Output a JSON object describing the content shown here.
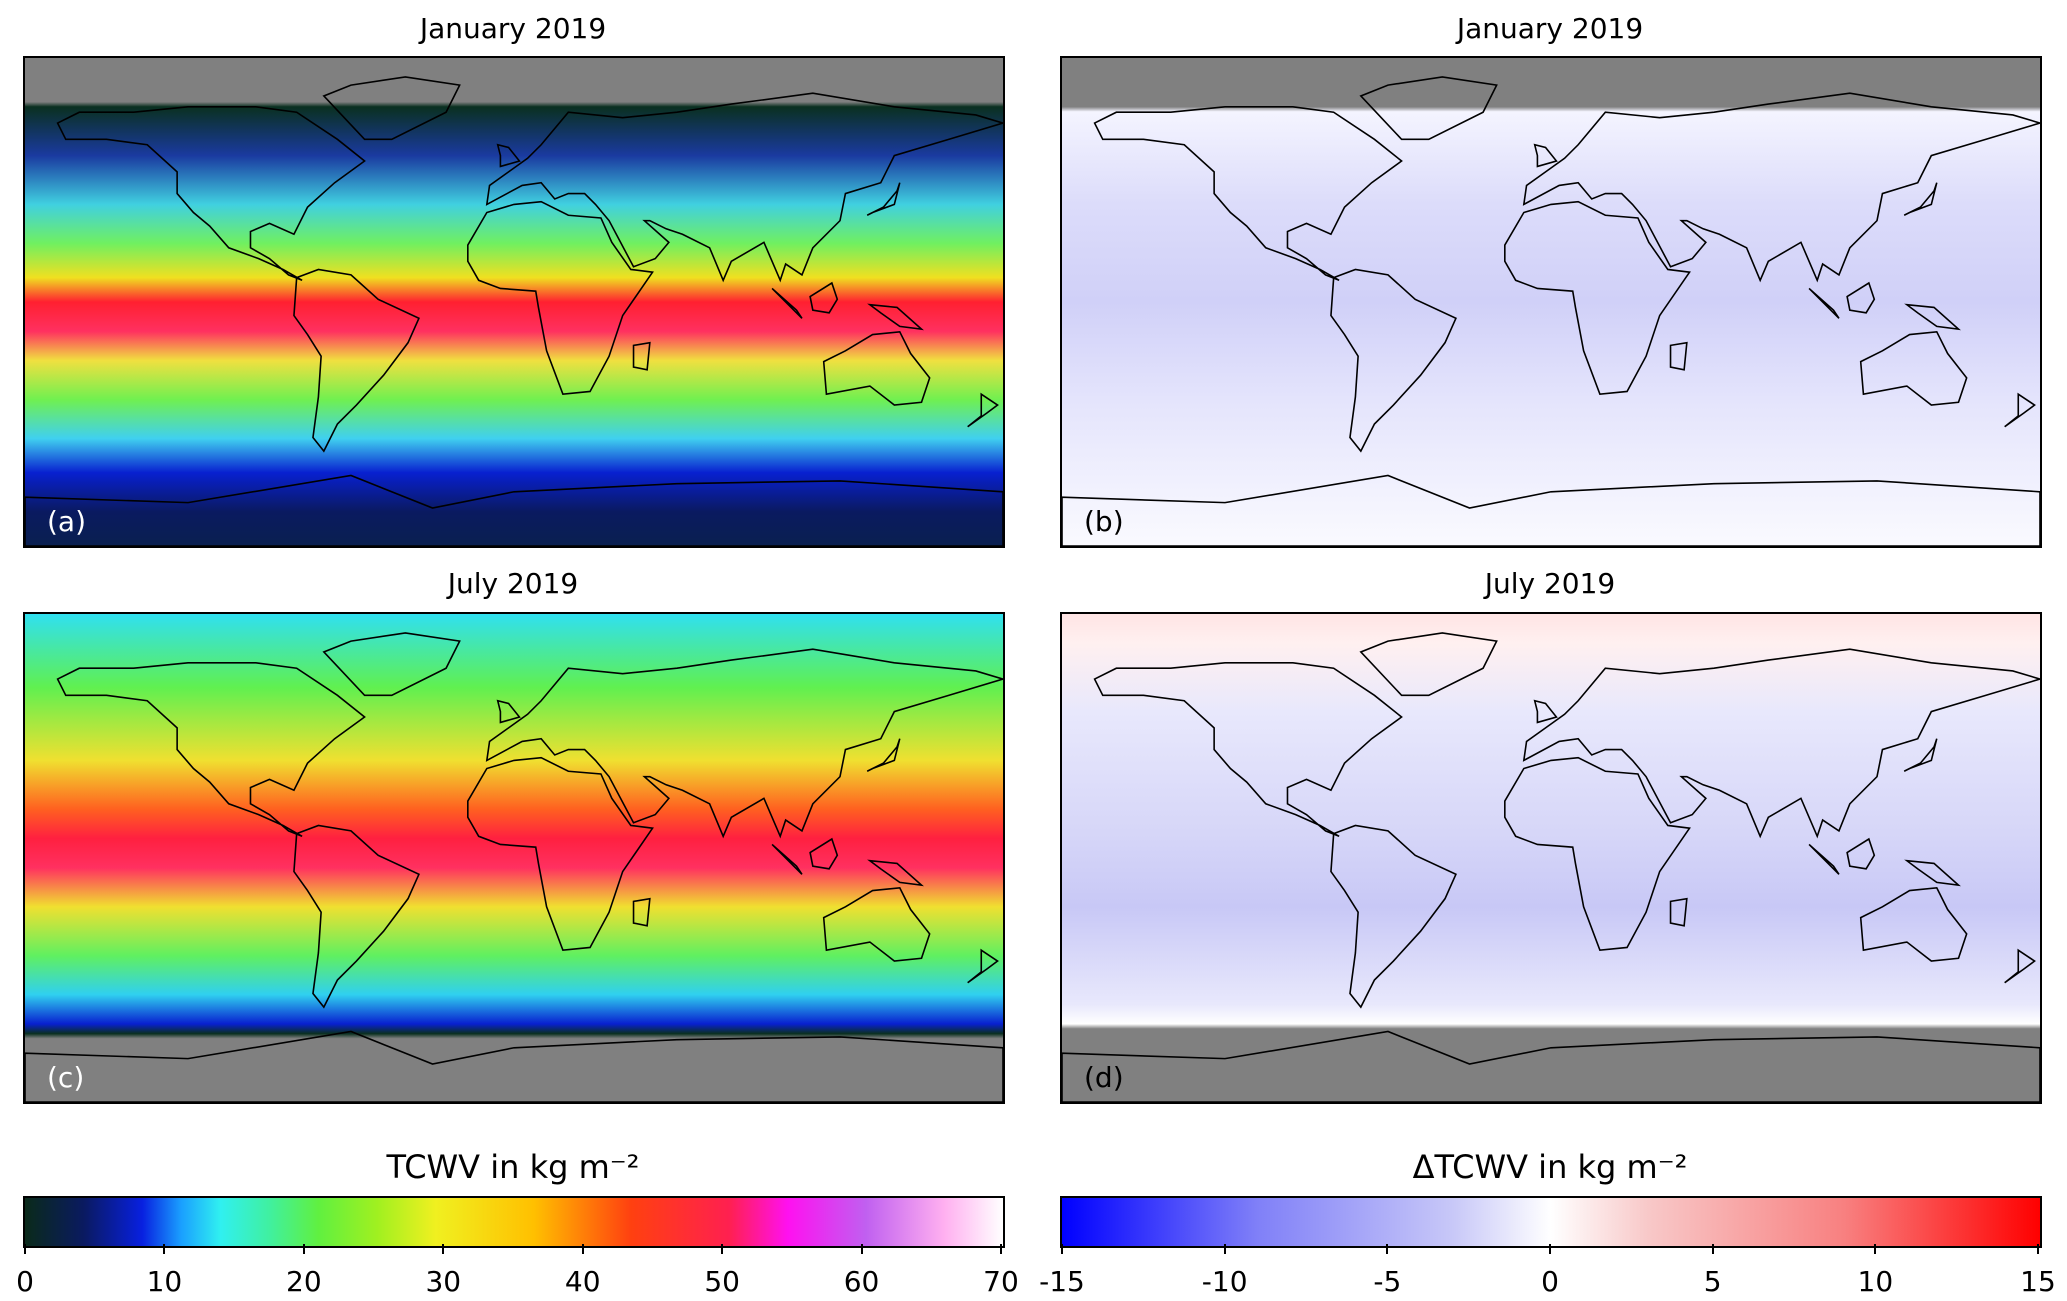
{
  "panels": [
    {
      "id": "a",
      "title": "January 2019",
      "label": "(a)",
      "kind": "tcwv",
      "month": "jan"
    },
    {
      "id": "b",
      "title": "January 2019",
      "label": "(b)",
      "kind": "delta",
      "month": "jan"
    },
    {
      "id": "c",
      "title": "July 2019",
      "label": "(c)",
      "kind": "tcwv",
      "month": "jul"
    },
    {
      "id": "d",
      "title": "July 2019",
      "label": "(d)",
      "kind": "delta",
      "month": "jul"
    }
  ],
  "colorbars": {
    "tcwv": {
      "title": "TCWV in kg m⁻²",
      "ticks": [
        "0",
        "10",
        "20",
        "30",
        "40",
        "50",
        "60",
        "70"
      ],
      "range": [
        0,
        70
      ]
    },
    "delta": {
      "title": "ΔTCWV in kg m⁻²",
      "ticks": [
        "-15",
        "-10",
        "-5",
        "0",
        "5",
        "10",
        "15"
      ],
      "range": [
        -15,
        15
      ]
    }
  },
  "colors": {
    "nodata": "#808080",
    "coast": "#000000"
  }
}
